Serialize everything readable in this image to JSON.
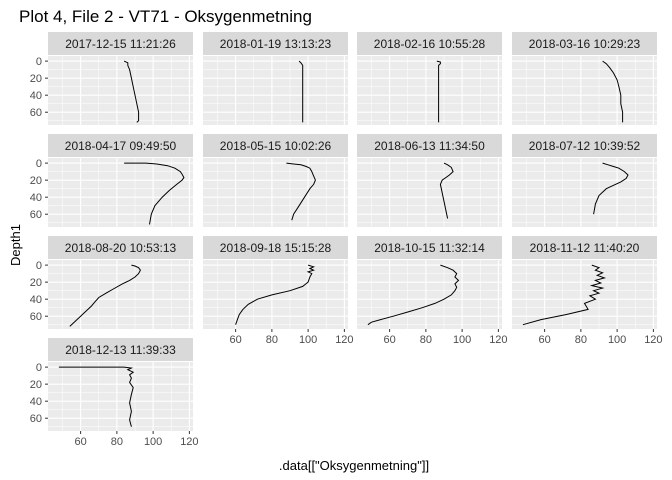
{
  "chart_data": {
    "type": "line",
    "title": "Plot 4, File 2 - VT71  -  Oksygenmetning",
    "xlabel": ".data[[\"Oksygenmetning\"]]",
    "ylabel": "Depth1",
    "xlim": [
      42,
      122
    ],
    "ylim": [
      75,
      -6
    ],
    "x_ticks": [
      60,
      80,
      100,
      120
    ],
    "y_ticks": [
      0,
      20,
      40,
      60
    ],
    "grid": true,
    "colors": {
      "panel_bg": "#ebebeb",
      "strip_bg": "#d9d9d9",
      "grid_major": "#ffffff",
      "line": "#000000"
    },
    "panels": [
      {
        "name": "2017-12-15 11:21:26",
        "x": [
          84,
          86,
          86,
          87,
          88,
          89,
          90,
          91,
          92,
          92,
          92,
          91
        ],
        "y": [
          0,
          2,
          5,
          10,
          20,
          30,
          40,
          50,
          60,
          66,
          70,
          72
        ]
      },
      {
        "name": "2018-01-19 13:13:23",
        "x": [
          95,
          96,
          97,
          97,
          97,
          97,
          97,
          97,
          97
        ],
        "y": [
          0,
          2,
          5,
          10,
          20,
          30,
          50,
          65,
          72
        ]
      },
      {
        "name": "2018-02-16 10:55:28",
        "x": [
          86,
          88,
          88,
          87,
          87,
          87,
          87,
          87,
          87,
          87
        ],
        "y": [
          0,
          1,
          3,
          5,
          10,
          20,
          35,
          50,
          65,
          72
        ]
      },
      {
        "name": "2018-03-16 10:29:23",
        "x": [
          92,
          94,
          96,
          98,
          100,
          101,
          102,
          102,
          103,
          103
        ],
        "y": [
          0,
          3,
          8,
          14,
          22,
          30,
          40,
          50,
          60,
          72
        ]
      },
      {
        "name": "2018-04-17 09:49:50",
        "x": [
          84,
          90,
          96,
          102,
          108,
          112,
          115,
          116,
          117,
          116,
          113,
          109,
          105,
          101,
          99,
          98
        ],
        "y": [
          0,
          0,
          0,
          1,
          3,
          6,
          10,
          13,
          17,
          20,
          25,
          32,
          40,
          50,
          60,
          72
        ]
      },
      {
        "name": "2018-05-15 10:02:26",
        "x": [
          88,
          92,
          96,
          99,
          101,
          102,
          103,
          104,
          103,
          101,
          98,
          95,
          92,
          91
        ],
        "y": [
          0,
          1,
          2,
          4,
          6,
          10,
          15,
          20,
          25,
          30,
          40,
          50,
          60,
          67
        ]
      },
      {
        "name": "2018-06-13 11:34:50",
        "x": [
          90,
          92,
          94,
          95,
          93,
          91,
          89,
          88,
          89,
          90,
          91,
          92
        ],
        "y": [
          0,
          2,
          5,
          10,
          14,
          17,
          20,
          25,
          35,
          45,
          55,
          65
        ]
      },
      {
        "name": "2018-07-12 10:39:52",
        "x": [
          92,
          95,
          98,
          101,
          104,
          106,
          105,
          102,
          98,
          94,
          90,
          88,
          87
        ],
        "y": [
          0,
          2,
          4,
          6,
          10,
          14,
          18,
          22,
          26,
          30,
          38,
          48,
          60
        ]
      },
      {
        "name": "2018-08-20 10:53:13",
        "x": [
          88,
          90,
          92,
          93,
          92,
          90,
          87,
          83,
          78,
          74,
          70,
          68,
          66,
          64,
          62,
          60,
          58,
          56,
          54
        ],
        "y": [
          0,
          1,
          3,
          6,
          10,
          14,
          18,
          22,
          28,
          33,
          38,
          43,
          48,
          52,
          56,
          60,
          64,
          68,
          72
        ]
      },
      {
        "name": "2018-09-18 15:15:28",
        "x": [
          100,
          103,
          101,
          103,
          100,
          102,
          101,
          100,
          97,
          90,
          80,
          72,
          67,
          64,
          62,
          61,
          60
        ],
        "y": [
          0,
          2,
          4,
          6,
          8,
          10,
          14,
          20,
          25,
          30,
          35,
          40,
          46,
          52,
          58,
          64,
          70
        ]
      },
      {
        "name": "2018-10-15 11:32:14",
        "x": [
          88,
          92,
          95,
          97,
          96,
          98,
          96,
          97,
          96,
          94,
          90,
          85,
          78,
          70,
          62,
          55,
          50,
          48
        ],
        "y": [
          0,
          3,
          6,
          10,
          14,
          18,
          22,
          26,
          30,
          35,
          40,
          45,
          50,
          55,
          60,
          64,
          67,
          70
        ]
      },
      {
        "name": "2018-11-12 11:40:20",
        "x": [
          86,
          90,
          88,
          92,
          89,
          93,
          88,
          91,
          86,
          92,
          87,
          90,
          85,
          88,
          82,
          84,
          72,
          58,
          48
        ],
        "y": [
          0,
          3,
          6,
          9,
          12,
          15,
          18,
          21,
          24,
          27,
          30,
          33,
          36,
          40,
          45,
          52,
          58,
          64,
          70
        ]
      },
      {
        "name": "2018-12-13 11:39:33",
        "x": [
          48,
          60,
          72,
          84,
          88,
          86,
          89,
          87,
          88,
          87,
          89,
          88,
          87,
          88,
          87,
          88
        ],
        "y": [
          0,
          0,
          0,
          0,
          1,
          3,
          6,
          9,
          13,
          18,
          24,
          32,
          42,
          52,
          62,
          70
        ]
      }
    ]
  }
}
